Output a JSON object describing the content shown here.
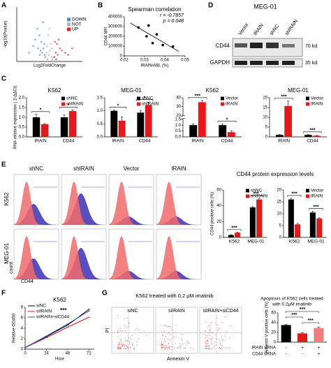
{
  "panel_labels": [
    "A",
    "B",
    "C",
    "D",
    "E",
    "F",
    "G"
  ],
  "chart_data": [
    {
      "type": "scatter",
      "x_label": "Log2FoldChange",
      "y_label": "-log10(Pvalue)",
      "xlim": [
        -8,
        8
      ],
      "ylim": [
        0,
        25
      ],
      "legend": "right",
      "series": [
        {
          "name": "DOWN",
          "color": "#4a90c2",
          "x": [
            -1.2,
            -1.5,
            -2,
            -2.5,
            -3,
            -1.8,
            -1.3,
            -2.2,
            -3.5,
            -4,
            -1.6,
            -2.8,
            -1.1,
            -5,
            -2.4
          ],
          "values": [
            3,
            6,
            9,
            12,
            15,
            4,
            8,
            5,
            10,
            7,
            18,
            6,
            2,
            4,
            3
          ]
        },
        {
          "name": "NOT",
          "color": "#b0b0b0",
          "x": [
            -0.5,
            -0.2,
            0.1,
            0.4,
            0.7,
            -0.8,
            0.3,
            -0.3,
            0.6,
            0.9,
            -0.6,
            0
          ],
          "values": [
            1,
            3,
            5,
            2,
            1,
            4,
            8,
            12,
            6,
            2,
            7,
            15
          ]
        },
        {
          "name": "UP",
          "color": "#d62728",
          "x": [
            1.2,
            1.5,
            2,
            2.5,
            3,
            1.8,
            1.3,
            3.8,
            4.5,
            2.2,
            5.5,
            1.6
          ],
          "values": [
            2,
            4,
            3,
            6,
            5,
            8,
            9,
            4,
            3,
            10,
            6,
            1
          ]
        }
      ]
    },
    {
      "type": "scatter",
      "title": "Spearman correlation",
      "annotations": [
        "r = -0.7857",
        "p = 0.048"
      ],
      "x_label": "IRAIN/ABL (%)",
      "y_label": "CD44 MFI",
      "xlim": [
        0.02,
        0.05
      ],
      "xticks": [
        0.02,
        0.03,
        0.04,
        0.05
      ],
      "ylim": [
        0,
        400000
      ],
      "yticks": [
        0,
        100000,
        200000,
        300000,
        400000
      ],
      "trendline": true,
      "series": [
        {
          "color": "#000000",
          "x": [
            0.027,
            0.032,
            0.031,
            0.034,
            0.036,
            0.039,
            0.044
          ],
          "values": [
            290000,
            310000,
            200000,
            130000,
            220000,
            110000,
            95000
          ]
        }
      ]
    },
    {
      "type": "bar",
      "title": "K562",
      "y_label": "RNA relative expression ( 2-ΔΔCt)",
      "categories": [
        "IRAIN",
        "CD44"
      ],
      "ylim": [
        0,
        2
      ],
      "yticks": [
        {
          "value": 0,
          "label": "0.0"
        },
        {
          "value": 0.5,
          "label": "0.5"
        },
        {
          "value": 1,
          "label": "1.0"
        },
        {
          "value": 1.5,
          "label": "1.5"
        },
        {
          "value": 2,
          "label": "2.0"
        }
      ],
      "significance": [
        "*",
        "*"
      ],
      "series": [
        {
          "name": "shNC",
          "color": "#000000",
          "values": [
            1,
            1
          ],
          "errors": [
            0.15,
            0.12
          ]
        },
        {
          "name": "shIRAIN",
          "color": "#e31a1c",
          "values": [
            0.65,
            1.32
          ],
          "errors": [
            0.03,
            0.06
          ]
        }
      ]
    },
    {
      "type": "bar",
      "title": "MEG-01",
      "categories": [
        "IRAIN",
        "CD44"
      ],
      "ylim": [
        0,
        1.5
      ],
      "yticks": [
        {
          "value": 0,
          "label": "0.0"
        },
        {
          "value": 0.5,
          "label": "0.5"
        },
        {
          "value": 1,
          "label": "1.0"
        },
        {
          "value": 1.5,
          "label": "1.5"
        }
      ],
      "significance": [
        "*",
        "*"
      ],
      "series": [
        {
          "name": "shNC",
          "color": "#000000",
          "values": [
            1,
            0.93
          ],
          "errors": [
            0.03,
            0.08
          ]
        },
        {
          "name": "shIRAIN",
          "color": "#e31a1c",
          "values": [
            0.62,
            1.22
          ],
          "errors": [
            0.15,
            0.1
          ]
        }
      ]
    },
    {
      "type": "bar",
      "title": "K562",
      "categories": [
        "IRAIN",
        "CD44"
      ],
      "ylim": [
        0,
        40
      ],
      "ybreak": [
        1.5,
        20
      ],
      "yticks": [
        {
          "value": 0,
          "label": "0.0"
        },
        {
          "value": 0.5,
          "label": "0.5"
        },
        {
          "value": 1,
          "label": "1.0"
        },
        {
          "value": 1.5,
          "label": "1.5"
        },
        20,
        30,
        40
      ],
      "significance": [
        "***",
        "*"
      ],
      "series": [
        {
          "name": "Vector",
          "color": "#000000",
          "values": [
            1,
            1
          ],
          "errors": [
            0.1,
            0.1
          ]
        },
        {
          "name": "IRAIN",
          "color": "#e31a1c",
          "values": [
            35,
            0.4
          ],
          "errors": [
            2,
            0.1
          ]
        }
      ]
    },
    {
      "type": "bar",
      "title": "MEG-01",
      "categories": [
        "IRAIN",
        "CD44"
      ],
      "ylim": [
        0,
        20
      ],
      "yticks": [
        0,
        5,
        10,
        15,
        20
      ],
      "significance": [
        "***",
        "***"
      ],
      "series": [
        {
          "name": "Vector",
          "color": "#000000",
          "values": [
            1,
            1
          ],
          "errors": [
            0.2,
            0.15
          ]
        },
        {
          "name": "IRAIN",
          "color": "#e31a1c",
          "values": [
            15.8,
            0.6
          ],
          "errors": [
            2.5,
            0.1
          ]
        }
      ]
    },
    {
      "type": "bar",
      "title": "CD44 protein expression levels",
      "y_label": "CD44 positive cells (%)",
      "categories": [
        "K562",
        "MEG-01"
      ],
      "ylim": [
        0,
        60
      ],
      "yticks": [
        0,
        20,
        40,
        60
      ],
      "significance": [
        "***",
        "***"
      ],
      "series": [
        {
          "name": "shNC",
          "color": "#000000",
          "values": [
            3,
            38
          ],
          "errors": [
            0.5,
            1
          ]
        },
        {
          "name": "shIRAIN",
          "color": "#e31a1c",
          "values": [
            6,
            48
          ],
          "errors": [
            0.5,
            1.5
          ]
        }
      ]
    },
    {
      "type": "bar",
      "categories": [
        "K562",
        "MEG-01"
      ],
      "ylim": [
        0,
        20
      ],
      "yticks": [
        0,
        5,
        10,
        15,
        20
      ],
      "significance": [
        "***",
        "***"
      ],
      "series": [
        {
          "name": "Vector",
          "color": "#000000",
          "values": [
            16,
            10.5
          ],
          "errors": [
            0.5,
            0.5
          ]
        },
        {
          "name": "IRAIN",
          "color": "#e31a1c",
          "values": [
            5.5,
            8
          ],
          "errors": [
            0.4,
            0.3
          ]
        }
      ]
    },
    {
      "type": "line",
      "title": "K562",
      "x_label": "Hour",
      "y_label": "Relative OD450",
      "x": [
        0,
        24,
        48,
        72
      ],
      "xlim": [
        0,
        78
      ],
      "xticks": [
        0,
        24,
        48,
        72
      ],
      "ylim": [
        0,
        8
      ],
      "yticks": [
        0,
        2,
        4,
        6,
        8
      ],
      "annotations": [
        "***"
      ],
      "series": [
        {
          "name": "siNC",
          "color": "#000000",
          "values": [
            0.3,
            2.4,
            4.6,
            7.6
          ]
        },
        {
          "name": "siIRAIN",
          "color": "#e31a1c",
          "values": [
            0.3,
            2.2,
            4.2,
            6.1
          ]
        },
        {
          "name": "siIRAIN+siCD44",
          "color": "#1f4fb4",
          "values": [
            0.3,
            2.5,
            4.8,
            7.3
          ]
        }
      ]
    },
    {
      "type": "bar_single",
      "title_lines": [
        "Apoptosis of K562 cells treated",
        "with 0.2μM imatinib"
      ],
      "y_label": "Annexin V positive cells (%)",
      "ylim": [
        0,
        60
      ],
      "yticks": [
        0,
        20,
        40,
        60
      ],
      "values": [
        35,
        18,
        29
      ],
      "errors": [
        1,
        1,
        1.5
      ],
      "colors": [
        "#000000",
        "#e31a1c",
        "#f08080"
      ],
      "comparisons": [
        {
          "pair": [
            0,
            2
          ],
          "label": "***"
        },
        {
          "pair": [
            0,
            1
          ],
          "label": "***"
        },
        {
          "pair": [
            1,
            2
          ],
          "label": "***"
        }
      ],
      "conditions": [
        {
          "name": "IRAIN siRNA",
          "values": [
            "-",
            "+",
            "+"
          ]
        },
        {
          "name": "CD44 siRNA",
          "values": [
            "-",
            "-",
            "+"
          ]
        }
      ]
    }
  ],
  "blot": {
    "title": "MEG-01",
    "lanes": [
      "Vector",
      "IRAIN",
      "shNC",
      "shIRAIN"
    ],
    "rows": [
      "CD44",
      "GAPDH"
    ],
    "markers": [
      "70 kd",
      "35 kd"
    ]
  },
  "flow_e": {
    "columns": [
      "shNC",
      "shIRAIN",
      "Vector",
      "IRAIN"
    ],
    "rows": [
      "K562",
      "MEG-01"
    ],
    "y_label": "count",
    "x_label": "CD44"
  },
  "flow_g": {
    "title": "K562 treated with 0.2 μM imatinib",
    "panels": [
      "siNC",
      "siIRAIN",
      "siIRAIN+siCD44"
    ],
    "y_label": "PI",
    "x_label": "Annexin V"
  }
}
